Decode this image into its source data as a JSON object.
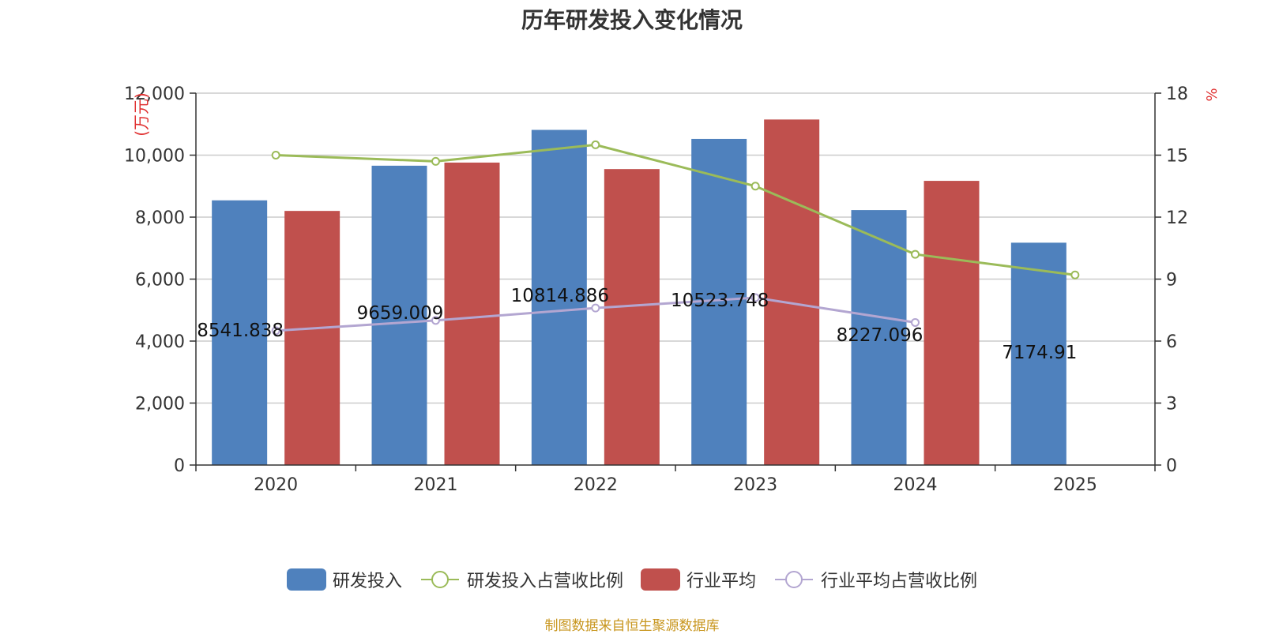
{
  "chart_data": {
    "type": "bar",
    "title": "历年研发投入变化情况",
    "categories": [
      "2020",
      "2021",
      "2022",
      "2023",
      "2024",
      "2025"
    ],
    "y_left": {
      "unit": "(万元)",
      "min": 0,
      "max": 12000,
      "ticks": [
        0,
        2000,
        4000,
        6000,
        8000,
        10000,
        12000
      ],
      "tick_labels": [
        "0",
        "2,000",
        "4,000",
        "6,000",
        "8,000",
        "10,000",
        "12,000"
      ]
    },
    "y_right": {
      "unit": "%",
      "min": 0,
      "max": 18,
      "ticks": [
        0,
        3,
        6,
        9,
        12,
        15,
        18
      ],
      "tick_labels": [
        "0",
        "3",
        "6",
        "9",
        "12",
        "15",
        "18"
      ]
    },
    "grid": true,
    "legend_position": "bottom",
    "series": [
      {
        "name": "研发投入",
        "kind": "bar",
        "axis": "left",
        "color": "#4f81bd",
        "values": [
          8541.838,
          9659.009,
          10814.886,
          10523.748,
          8227.096,
          7174.91
        ],
        "labels": [
          "8541.838",
          "9659.009",
          "10814.886",
          "10523.748",
          "8227.096",
          "7174.91"
        ]
      },
      {
        "name": "研发投入占营收比例",
        "kind": "line",
        "axis": "right",
        "color": "#9bbb59",
        "values": [
          15.0,
          14.7,
          15.5,
          13.5,
          10.2,
          9.2
        ]
      },
      {
        "name": "行业平均",
        "kind": "bar",
        "axis": "left",
        "color": "#c0504d",
        "values": [
          8200,
          9760,
          9550,
          11150,
          9170,
          null
        ]
      },
      {
        "name": "行业平均占营收比例",
        "kind": "line",
        "axis": "right",
        "color": "#b3a6d1",
        "values": [
          6.5,
          7.0,
          7.6,
          8.1,
          6.9,
          null
        ]
      }
    ]
  },
  "source_note": "制图数据来自恒生聚源数据库"
}
